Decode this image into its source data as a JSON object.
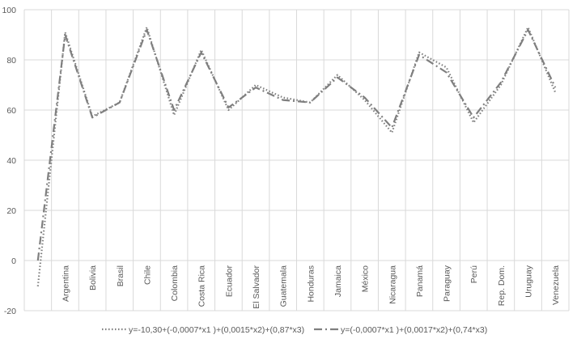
{
  "chart_data": {
    "type": "line",
    "title": "",
    "xlabel": "",
    "ylabel": "",
    "ylim": [
      -20,
      100
    ],
    "yticks": [
      -20,
      0,
      20,
      40,
      60,
      80,
      100
    ],
    "grid": true,
    "legend_position": "bottom",
    "categories": [
      "",
      "Argentina",
      "Bolivia",
      "Brasil",
      "Chile",
      "Colombia",
      "Costa Rica",
      "Ecuador",
      "El Salvador",
      "Guatemala",
      "Honduras",
      "Jamaica",
      "México",
      "Nicaragua",
      "Panamá",
      "Paraguay",
      "Perú",
      "Rep. Dom.",
      "Uruguay",
      "Venezuela"
    ],
    "series": [
      {
        "name": "y=-10,30+(-0,0007*x1 )+(0,0015*x2)+(0,87*x3)",
        "style": "dotted",
        "color": "#7f7f7f",
        "values": [
          -10.3,
          91,
          57.5,
          63,
          93,
          58,
          84,
          60,
          70,
          65,
          63,
          74,
          64,
          51,
          83,
          77,
          55,
          70,
          93,
          67
        ]
      },
      {
        "name": "y=(-0,0007*x1 )+(0,0017*x2)+(0,74*x3)",
        "style": "dash-dot",
        "color": "#7f7f7f",
        "values": [
          0,
          90,
          57,
          63,
          92,
          60,
          83,
          61,
          69,
          64,
          63,
          73,
          65,
          53,
          82,
          75,
          57,
          71,
          92,
          69
        ]
      }
    ]
  }
}
